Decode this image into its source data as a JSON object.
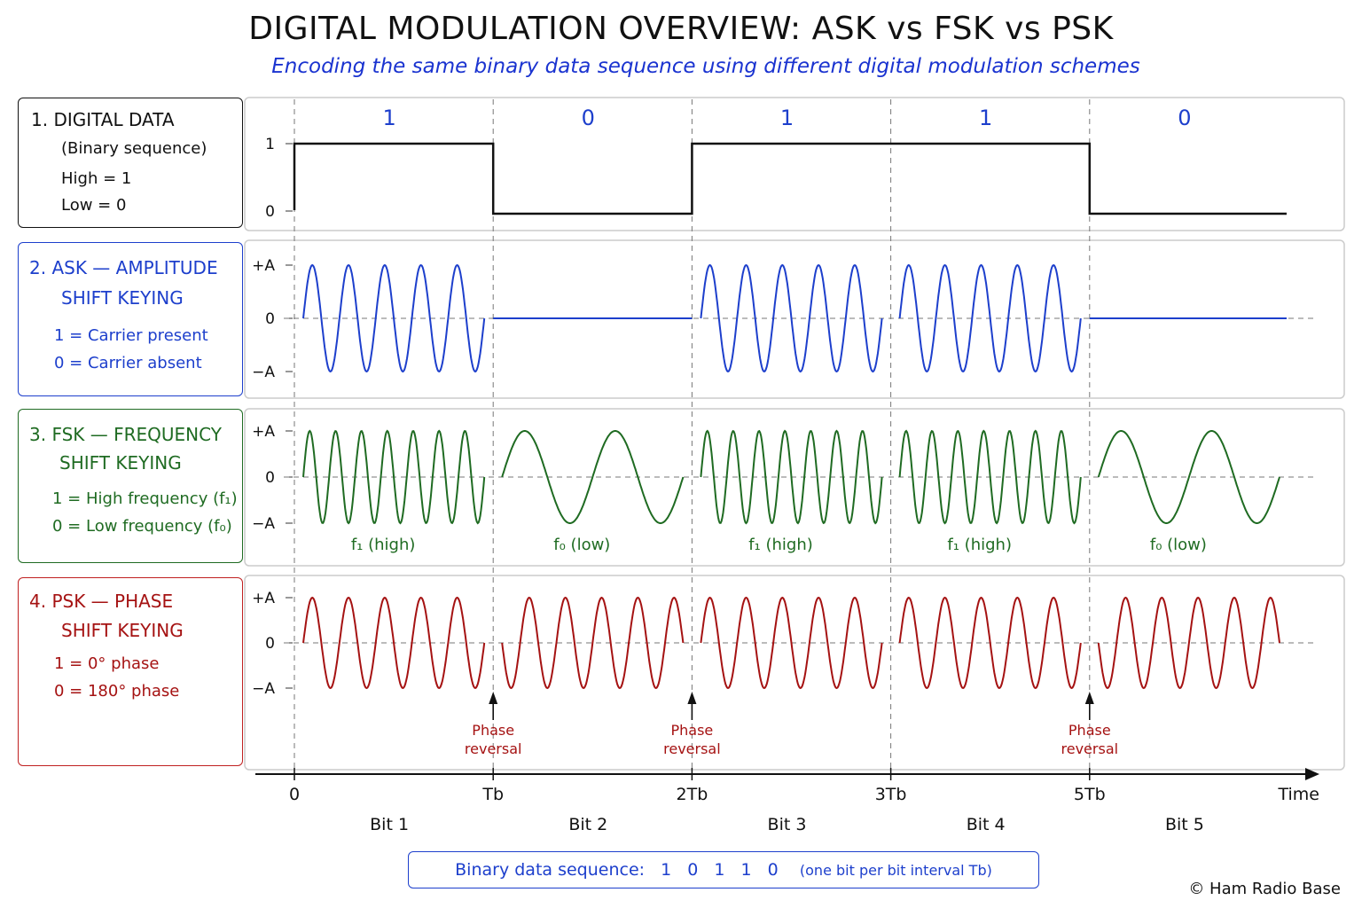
{
  "title": "DIGITAL MODULATION OVERVIEW: ASK vs FSK vs PSK",
  "subtitle": "Encoding the same binary data sequence using different digital modulation schemes",
  "panels": {
    "digital": {
      "title": "1. DIGITAL DATA",
      "lines": [
        "(Binary sequence)",
        "High = 1",
        "Low = 0"
      ],
      "y_ticks": [
        "1",
        "0"
      ],
      "color": "#111111"
    },
    "ask": {
      "title_line1": "2. ASK — AMPLITUDE",
      "title_line2": "SHIFT KEYING",
      "lines": [
        "1 = Carrier present",
        "0 = Carrier absent"
      ],
      "y_ticks": [
        "+A",
        "0",
        "−A"
      ],
      "color": "#1d3fcc"
    },
    "fsk": {
      "title_line1": "3. FSK — FREQUENCY",
      "title_line2": "SHIFT KEYING",
      "lines": [
        "1 = High frequency (f₁)",
        "0 = Low frequency (f₀)"
      ],
      "y_ticks": [
        "+A",
        "0",
        "−A"
      ],
      "bit_labels": [
        "f₁ (high)",
        "f₀ (low)",
        "f₁ (high)",
        "f₁ (high)",
        "f₀ (low)"
      ],
      "color": "#1f6b22"
    },
    "psk": {
      "title_line1": "4. PSK — PHASE",
      "title_line2": "SHIFT KEYING",
      "lines": [
        "1 = 0° phase",
        "0 = 180° phase"
      ],
      "y_ticks": [
        "+A",
        "0",
        "−A"
      ],
      "phase_reversal_line1": "Phase",
      "phase_reversal_line2": "reversal",
      "color": "#a51212"
    }
  },
  "chart_data": {
    "type": "line",
    "bits": [
      1,
      0,
      1,
      1,
      0
    ],
    "bit_value_labels": [
      "1",
      "0",
      "1",
      "1",
      "0"
    ],
    "bit_names": [
      "Bit 1",
      "Bit 2",
      "Bit 3",
      "Bit 4",
      "Bit 5"
    ],
    "time_ticks": [
      "0",
      "Tb",
      "2Tb",
      "3Tb",
      "5Tb"
    ],
    "time_label": "Time",
    "carrier_cycles_per_bit": 5,
    "fsk_high_cycles_per_bit": 7,
    "fsk_low_cycles_per_bit": 2,
    "phase_reversal_boundaries": [
      1,
      2,
      4
    ],
    "grid": false
  },
  "bottom": {
    "label": "Binary data sequence:",
    "sequence": "1 0 1 1 0",
    "note": "(one bit per bit interval Tb)"
  },
  "copyright": "© Ham Radio Base"
}
